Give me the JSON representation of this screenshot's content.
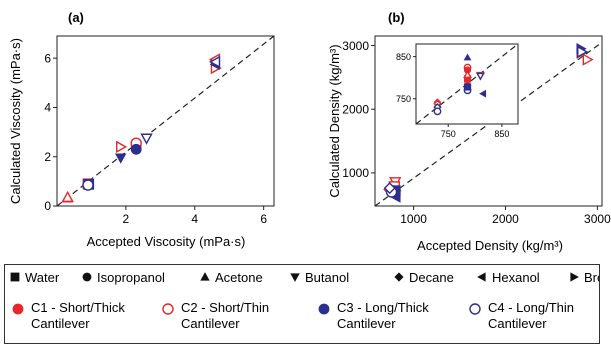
{
  "chart_data": [
    {
      "id": "a",
      "type": "scatter",
      "panel_label": "(a)",
      "xlabel": "Accepted Viscosity (mPa·s)",
      "ylabel": "Calculated Viscosity (mPa·s)",
      "xlim": [
        0,
        6.3
      ],
      "ylim": [
        0,
        6.9
      ],
      "xticks": [
        2,
        4,
        6
      ],
      "yticks": [
        0,
        2,
        4,
        6
      ],
      "tick_labels_x": [
        "2",
        "4",
        "6"
      ],
      "tick_labels_y": [
        "0",
        "2",
        "4",
        "6"
      ],
      "reference_line": {
        "style": "dashed",
        "from": [
          0,
          0
        ],
        "to": [
          6.3,
          6.9
        ]
      },
      "series": [
        {
          "name": "C1 - Short/Thick Cantilever",
          "color": "#e8262b",
          "filled": true,
          "points": [
            {
              "liquid": "Acetone",
              "x": 0.3,
              "y": 0.32
            },
            {
              "liquid": "Isopropanol",
              "x": 2.3,
              "y": 2.45
            },
            {
              "liquid": "Water",
              "x": 0.9,
              "y": 0.9
            },
            {
              "liquid": "Hexanol",
              "x": 4.6,
              "y": 5.9
            }
          ]
        },
        {
          "name": "C2 - Short/Thin Cantilever",
          "color": "#e8262b",
          "filled": false,
          "points": [
            {
              "liquid": "Acetone",
              "x": 0.31,
              "y": 0.35
            },
            {
              "liquid": "Bromoform",
              "x": 1.85,
              "y": 2.4
            },
            {
              "liquid": "Isopropanol",
              "x": 2.3,
              "y": 2.55
            },
            {
              "liquid": "Hexanol",
              "x": 4.6,
              "y": 5.95
            },
            {
              "liquid": "Bromoform",
              "x": 4.6,
              "y": 5.6
            }
          ]
        },
        {
          "name": "C3 - Long/Thick Cantilever",
          "color": "#2c2f8e",
          "filled": true,
          "points": [
            {
              "liquid": "Water",
              "x": 0.92,
              "y": 0.88
            },
            {
              "liquid": "Butanol",
              "x": 1.85,
              "y": 1.95
            },
            {
              "liquid": "Isopropanol",
              "x": 2.3,
              "y": 2.3
            },
            {
              "liquid": "Hexanol",
              "x": 4.6,
              "y": 5.75
            }
          ]
        },
        {
          "name": "C4 - Long/Thin Cantilever",
          "color": "#2c2f8e",
          "filled": false,
          "points": [
            {
              "liquid": "Isopropanol",
              "x": 0.9,
              "y": 0.85
            },
            {
              "liquid": "Butanol",
              "x": 2.6,
              "y": 2.75
            },
            {
              "liquid": "Hexanol",
              "x": 4.6,
              "y": 5.85
            }
          ]
        }
      ]
    },
    {
      "id": "b",
      "type": "scatter",
      "panel_label": "(b)",
      "xlabel": "Accepted Density (kg/m³)",
      "ylabel": "Calculated Density (kg/m³)",
      "xlim": [
        580,
        3050
      ],
      "ylim": [
        480,
        3150
      ],
      "xticks": [
        1000,
        2000,
        3000
      ],
      "yticks": [
        1000,
        2000,
        3000
      ],
      "tick_labels_x": [
        "1000",
        "2000",
        "3000"
      ],
      "tick_labels_y": [
        "1000",
        "2000",
        "3000"
      ],
      "reference_line": {
        "style": "dashed",
        "from": [
          580,
          480
        ],
        "to": [
          3050,
          3050
        ]
      },
      "series": [
        {
          "name": "C1 - Short/Thick Cantilever",
          "color": "#e8262b",
          "filled": true,
          "points": [
            {
              "liquid": "Acetone",
              "x": 790,
              "y": 800
            },
            {
              "liquid": "Decane",
              "x": 730,
              "y": 740
            },
            {
              "liquid": "Bromoform",
              "x": 2820,
              "y": 2880
            }
          ]
        },
        {
          "name": "C2 - Short/Thin Cantilever",
          "color": "#e8262b",
          "filled": false,
          "points": [
            {
              "liquid": "Butanol",
              "x": 800,
              "y": 860
            },
            {
              "liquid": "Water",
              "x": 790,
              "y": 780
            },
            {
              "liquid": "Bromoform",
              "x": 2890,
              "y": 2780
            }
          ]
        },
        {
          "name": "C3 - Long/Thick Cantilever",
          "color": "#2c2f8e",
          "filled": true,
          "points": [
            {
              "liquid": "Water",
              "x": 800,
              "y": 720
            },
            {
              "liquid": "Butanol",
              "x": 805,
              "y": 660
            },
            {
              "liquid": "Hexanol",
              "x": 810,
              "y": 620
            },
            {
              "liquid": "Bromoform",
              "x": 2820,
              "y": 2950
            }
          ]
        },
        {
          "name": "C4 - Long/Thin Cantilever",
          "color": "#2c2f8e",
          "filled": false,
          "points": [
            {
              "liquid": "Isopropanol",
              "x": 760,
              "y": 700
            },
            {
              "liquid": "Decane",
              "x": 740,
              "y": 760
            },
            {
              "liquid": "Bromoform",
              "x": 2830,
              "y": 2900
            }
          ]
        }
      ],
      "inset": {
        "xlim": [
          690,
          880
        ],
        "ylim": [
          690,
          880
        ],
        "xticks": [
          750,
          850
        ],
        "yticks": [
          750,
          850
        ],
        "tick_labels_x": [
          "750",
          "850"
        ],
        "tick_labels_y": [
          "750",
          "850"
        ],
        "reference_line": {
          "style": "dashed",
          "from": [
            690,
            690
          ],
          "to": [
            880,
            880
          ]
        },
        "points": [
          {
            "series": "C1",
            "liquid": "Acetone",
            "x": 786,
            "y": 787,
            "color": "#e8262b",
            "filled": true,
            "marker": "triangle-up"
          },
          {
            "series": "C3",
            "liquid": "Acetone",
            "x": 786,
            "y": 848,
            "color": "#2c2f8e",
            "filled": true,
            "marker": "triangle-up"
          },
          {
            "series": "C2",
            "liquid": "Isopropanol",
            "x": 786,
            "y": 824,
            "color": "#e8262b",
            "filled": false,
            "marker": "circle"
          },
          {
            "series": "C1",
            "liquid": "Isopropanol",
            "x": 786,
            "y": 818,
            "color": "#e8262b",
            "filled": true,
            "marker": "circle"
          },
          {
            "series": "C4",
            "liquid": "Isopropanol",
            "x": 786,
            "y": 770,
            "color": "#2c2f8e",
            "filled": false,
            "marker": "circle"
          },
          {
            "series": "C1",
            "liquid": "Water",
            "x": 786,
            "y": 797,
            "color": "#e8262b",
            "filled": true,
            "marker": "square"
          },
          {
            "series": "C3",
            "liquid": "Water",
            "x": 786,
            "y": 778,
            "color": "#2c2f8e",
            "filled": true,
            "marker": "square"
          },
          {
            "series": "C2",
            "liquid": "Acetone",
            "x": 786,
            "y": 807,
            "color": "#e8262b",
            "filled": false,
            "marker": "triangle-up"
          },
          {
            "series": "C2",
            "liquid": "Butanol",
            "x": 810,
            "y": 806,
            "color": "#e8262b",
            "filled": false,
            "marker": "triangle-down"
          },
          {
            "series": "C4",
            "liquid": "Butanol",
            "x": 810,
            "y": 804,
            "color": "#2c2f8e",
            "filled": false,
            "marker": "triangle-down"
          },
          {
            "series": "C3",
            "liquid": "Decane",
            "x": 815,
            "y": 762,
            "color": "#2c2f8e",
            "filled": true,
            "marker": "triangle-left"
          },
          {
            "series": "C1",
            "liquid": "Decane",
            "x": 730,
            "y": 742,
            "color": "#e8262b",
            "filled": true,
            "marker": "diamond"
          },
          {
            "series": "C2",
            "liquid": "Decane",
            "x": 730,
            "y": 738,
            "color": "#e8262b",
            "filled": false,
            "marker": "diamond"
          },
          {
            "series": "C4",
            "liquid": "Decane",
            "x": 730,
            "y": 730,
            "color": "#2c2f8e",
            "filled": false,
            "marker": "diamond"
          },
          {
            "series": "C4",
            "liquid": "Water",
            "x": 730,
            "y": 720,
            "color": "#2c2f8e",
            "filled": false,
            "marker": "circle"
          }
        ]
      }
    }
  ],
  "legend": {
    "liquids": [
      {
        "marker": "square",
        "label": "Water"
      },
      {
        "marker": "circle",
        "label": "Isopropanol"
      },
      {
        "marker": "triangle-up",
        "label": "Acetone"
      },
      {
        "marker": "triangle-down",
        "label": "Butanol"
      },
      {
        "marker": "diamond",
        "label": "Decane"
      },
      {
        "marker": "triangle-left",
        "label": "Hexanol"
      },
      {
        "marker": "triangle-right",
        "label": "Bromoform"
      }
    ],
    "cantilevers": [
      {
        "line1": "C1 - Short/Thick",
        "line2": "Cantilever",
        "color": "#e8262b",
        "filled": true
      },
      {
        "line1": "C2 - Short/Thin",
        "line2": "Cantilever",
        "color": "#e8262b",
        "filled": false
      },
      {
        "line1": "C3 - Long/Thick",
        "line2": "Cantilever",
        "color": "#2c2f8e",
        "filled": true
      },
      {
        "line1": "C4 - Long/Thin",
        "line2": "Cantilever",
        "color": "#2c2f8e",
        "filled": false
      }
    ]
  }
}
